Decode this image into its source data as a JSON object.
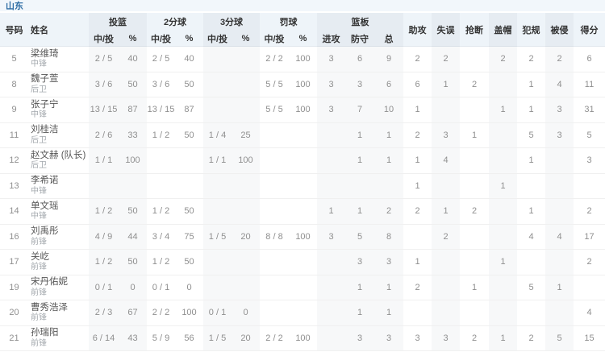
{
  "team": {
    "name": "山东"
  },
  "table": {
    "header": {
      "number": "号码",
      "name": "姓名",
      "fg": "投篮",
      "p2": "2分球",
      "p3": "3分球",
      "ft": "罚球",
      "made_att": "中/投",
      "pct": "%",
      "reb": "篮板",
      "reb_off": "进攻",
      "reb_def": "防守",
      "reb_tot": "总",
      "ast": "助攻",
      "to": "失误",
      "stl": "抢断",
      "blk": "盖帽",
      "pf": "犯规",
      "fd": "被侵",
      "pts": "得分"
    },
    "rows": [
      {
        "no": "5",
        "name": "梁维琦",
        "pos": "中锋",
        "fg": "2 / 5",
        "fg_pct": "40",
        "p2": "2 / 5",
        "p2_pct": "40",
        "p3": "",
        "p3_pct": "",
        "ft": "2 / 2",
        "ft_pct": "100",
        "orb": "3",
        "drb": "6",
        "trb": "9",
        "ast": "2",
        "to": "2",
        "stl": "",
        "blk": "2",
        "pf": "2",
        "fd": "2",
        "pts": "6"
      },
      {
        "no": "8",
        "name": "魏子萱",
        "pos": "后卫",
        "fg": "3 / 6",
        "fg_pct": "50",
        "p2": "3 / 6",
        "p2_pct": "50",
        "p3": "",
        "p3_pct": "",
        "ft": "5 / 5",
        "ft_pct": "100",
        "orb": "3",
        "drb": "3",
        "trb": "6",
        "ast": "6",
        "to": "1",
        "stl": "2",
        "blk": "",
        "pf": "1",
        "fd": "4",
        "pts": "11"
      },
      {
        "no": "9",
        "name": "张子宁",
        "pos": "中锋",
        "fg": "13 / 15",
        "fg_pct": "87",
        "p2": "13 / 15",
        "p2_pct": "87",
        "p3": "",
        "p3_pct": "",
        "ft": "5 / 5",
        "ft_pct": "100",
        "orb": "3",
        "drb": "7",
        "trb": "10",
        "ast": "1",
        "to": "",
        "stl": "",
        "blk": "1",
        "pf": "1",
        "fd": "3",
        "pts": "31"
      },
      {
        "no": "11",
        "name": "刘桂洁",
        "pos": "后卫",
        "fg": "2 / 6",
        "fg_pct": "33",
        "p2": "1 / 2",
        "p2_pct": "50",
        "p3": "1 / 4",
        "p3_pct": "25",
        "ft": "",
        "ft_pct": "",
        "orb": "",
        "drb": "1",
        "trb": "1",
        "ast": "2",
        "to": "3",
        "stl": "1",
        "blk": "",
        "pf": "5",
        "fd": "3",
        "pts": "5"
      },
      {
        "no": "12",
        "name": "赵文赫 (队长)",
        "pos": "后卫",
        "fg": "1 / 1",
        "fg_pct": "100",
        "p2": "",
        "p2_pct": "",
        "p3": "1 / 1",
        "p3_pct": "100",
        "ft": "",
        "ft_pct": "",
        "orb": "",
        "drb": "1",
        "trb": "1",
        "ast": "1",
        "to": "4",
        "stl": "",
        "blk": "",
        "pf": "1",
        "fd": "",
        "pts": "3"
      },
      {
        "no": "13",
        "name": "李希诺",
        "pos": "中锋",
        "fg": "",
        "fg_pct": "",
        "p2": "",
        "p2_pct": "",
        "p3": "",
        "p3_pct": "",
        "ft": "",
        "ft_pct": "",
        "orb": "",
        "drb": "",
        "trb": "",
        "ast": "1",
        "to": "",
        "stl": "",
        "blk": "1",
        "pf": "",
        "fd": "",
        "pts": ""
      },
      {
        "no": "14",
        "name": "单文瑶",
        "pos": "中锋",
        "fg": "1 / 2",
        "fg_pct": "50",
        "p2": "1 / 2",
        "p2_pct": "50",
        "p3": "",
        "p3_pct": "",
        "ft": "",
        "ft_pct": "",
        "orb": "1",
        "drb": "1",
        "trb": "2",
        "ast": "2",
        "to": "1",
        "stl": "2",
        "blk": "",
        "pf": "1",
        "fd": "",
        "pts": "2"
      },
      {
        "no": "16",
        "name": "刘禹彤",
        "pos": "前锋",
        "fg": "4 / 9",
        "fg_pct": "44",
        "p2": "3 / 4",
        "p2_pct": "75",
        "p3": "1 / 5",
        "p3_pct": "20",
        "ft": "8 / 8",
        "ft_pct": "100",
        "orb": "3",
        "drb": "5",
        "trb": "8",
        "ast": "",
        "to": "2",
        "stl": "",
        "blk": "",
        "pf": "4",
        "fd": "4",
        "pts": "17"
      },
      {
        "no": "17",
        "name": "关屹",
        "pos": "前锋",
        "fg": "1 / 2",
        "fg_pct": "50",
        "p2": "1 / 2",
        "p2_pct": "50",
        "p3": "",
        "p3_pct": "",
        "ft": "",
        "ft_pct": "",
        "orb": "",
        "drb": "3",
        "trb": "3",
        "ast": "1",
        "to": "",
        "stl": "",
        "blk": "1",
        "pf": "",
        "fd": "",
        "pts": "2"
      },
      {
        "no": "19",
        "name": "宋丹佑妮",
        "pos": "前锋",
        "fg": "0 / 1",
        "fg_pct": "0",
        "p2": "0 / 1",
        "p2_pct": "0",
        "p3": "",
        "p3_pct": "",
        "ft": "",
        "ft_pct": "",
        "orb": "",
        "drb": "1",
        "trb": "1",
        "ast": "2",
        "to": "",
        "stl": "1",
        "blk": "",
        "pf": "5",
        "fd": "1",
        "pts": ""
      },
      {
        "no": "20",
        "name": "曹秀浩泽",
        "pos": "前锋",
        "fg": "2 / 3",
        "fg_pct": "67",
        "p2": "2 / 2",
        "p2_pct": "100",
        "p3": "0 / 1",
        "p3_pct": "0",
        "ft": "",
        "ft_pct": "",
        "orb": "",
        "drb": "1",
        "trb": "1",
        "ast": "",
        "to": "",
        "stl": "",
        "blk": "",
        "pf": "",
        "fd": "",
        "pts": "4"
      },
      {
        "no": "21",
        "name": "孙瑞阳",
        "pos": "前锋",
        "fg": "6 / 14",
        "fg_pct": "43",
        "p2": "5 / 9",
        "p2_pct": "56",
        "p3": "1 / 5",
        "p3_pct": "20",
        "ft": "2 / 2",
        "ft_pct": "100",
        "orb": "",
        "drb": "3",
        "trb": "3",
        "ast": "3",
        "to": "3",
        "stl": "2",
        "blk": "1",
        "pf": "2",
        "fd": "5",
        "pts": "15"
      }
    ]
  }
}
